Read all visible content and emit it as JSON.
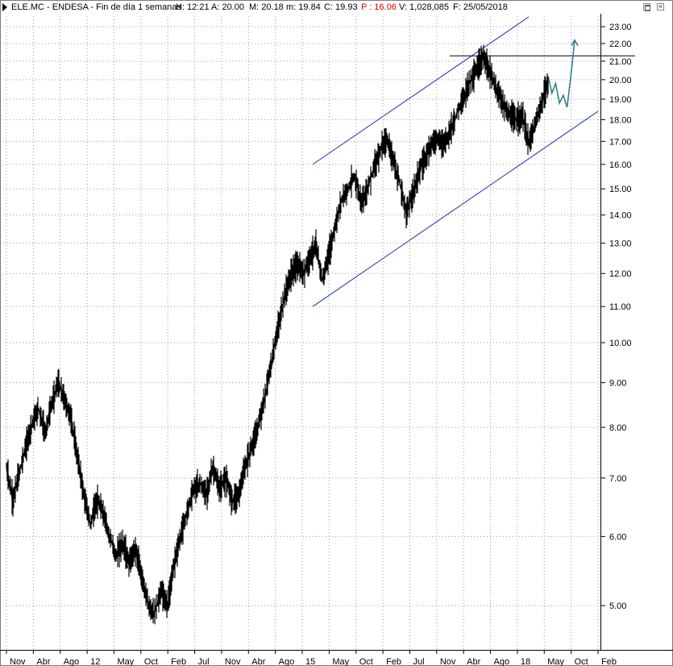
{
  "header": {
    "ticker": "ELE.MC - ENDESA - Fin de día 1 semanas",
    "h": "H: 12:21",
    "a": "A: 20.00",
    "m_max": "M: 20.18",
    "m_min": "m: 19.84",
    "c": "C: 19.93",
    "p": "P : 16.06",
    "v": "V: 1,028,085",
    "f": "F: 25/05/2018"
  },
  "colors": {
    "price": "#000000",
    "channel": "#1c2fb8",
    "resistance": "#000000",
    "projection": "#2f7f8f",
    "grid": "#9a9a9a",
    "header_p": "#e00000"
  },
  "controls": {
    "maximize_icon": "maximize-icon",
    "close_icon": "close-icon"
  },
  "chart_data": {
    "type": "candlestick-line",
    "scale": "log",
    "ylim": [
      4.45,
      23.8
    ],
    "y_ticks": [
      "23.00",
      "22.00",
      "21.00",
      "20.00",
      "19.00",
      "18.00",
      "17.00",
      "16.00",
      "15.00",
      "14.00",
      "13.00",
      "12.00",
      "11.00",
      "10.00",
      "9.00",
      "8.00",
      "7.00",
      "6.00",
      "5.00"
    ],
    "x_ticks": [
      "Nov",
      "Abr",
      "Ago",
      "12",
      "May",
      "Oct",
      "Feb",
      "Jul",
      "Nov",
      "Abr",
      "Ago",
      "15",
      "May",
      "Oct",
      "Feb",
      "Jul",
      "Nov",
      "Abr",
      "Ago",
      "18",
      "May",
      "Oct",
      "Feb"
    ],
    "price_path": [
      [
        0,
        7.2
      ],
      [
        1,
        6.6
      ],
      [
        2,
        7.1
      ],
      [
        3,
        7.6
      ],
      [
        4,
        8.1
      ],
      [
        5,
        8.4
      ],
      [
        6,
        7.9
      ],
      [
        7,
        8.5
      ],
      [
        8,
        9.0
      ],
      [
        9,
        8.6
      ],
      [
        10,
        8.2
      ],
      [
        11,
        7.4
      ],
      [
        12,
        6.7
      ],
      [
        13,
        6.2
      ],
      [
        14,
        6.6
      ],
      [
        15,
        6.4
      ],
      [
        16,
        6.0
      ],
      [
        17,
        5.7
      ],
      [
        18,
        5.9
      ],
      [
        19,
        5.6
      ],
      [
        20,
        5.8
      ],
      [
        21,
        5.4
      ],
      [
        22,
        5.0
      ],
      [
        23,
        4.9
      ],
      [
        24,
        5.2
      ],
      [
        25,
        5.0
      ],
      [
        26,
        5.6
      ],
      [
        27,
        6.0
      ],
      [
        28,
        6.4
      ],
      [
        29,
        6.8
      ],
      [
        30,
        6.9
      ],
      [
        31,
        6.7
      ],
      [
        32,
        7.2
      ],
      [
        33,
        6.8
      ],
      [
        34,
        7.0
      ],
      [
        35,
        6.6
      ],
      [
        36,
        6.7
      ],
      [
        37,
        7.2
      ],
      [
        38,
        7.6
      ],
      [
        39,
        8.0
      ],
      [
        40,
        8.6
      ],
      [
        41,
        9.4
      ],
      [
        42,
        10.3
      ],
      [
        43,
        11.2
      ],
      [
        44,
        11.9
      ],
      [
        45,
        12.3
      ],
      [
        46,
        12.0
      ],
      [
        47,
        12.5
      ],
      [
        48,
        12.9
      ],
      [
        49,
        11.8
      ],
      [
        50,
        12.6
      ],
      [
        51,
        13.6
      ],
      [
        52,
        14.6
      ],
      [
        53,
        15.0
      ],
      [
        54,
        15.5
      ],
      [
        55,
        14.5
      ],
      [
        56,
        15.0
      ],
      [
        57,
        15.9
      ],
      [
        58,
        16.6
      ],
      [
        59,
        17.1
      ],
      [
        60,
        16.2
      ],
      [
        61,
        15.2
      ],
      [
        62,
        14.1
      ],
      [
        63,
        14.8
      ],
      [
        64,
        15.7
      ],
      [
        65,
        16.3
      ],
      [
        66,
        17.0
      ],
      [
        67,
        17.1
      ],
      [
        68,
        16.9
      ],
      [
        69,
        17.6
      ],
      [
        70,
        18.4
      ],
      [
        71,
        19.2
      ],
      [
        72,
        20.0
      ],
      [
        73,
        20.6
      ],
      [
        74,
        21.3
      ],
      [
        75,
        20.4
      ],
      [
        76,
        19.5
      ],
      [
        77,
        18.8
      ],
      [
        78,
        18.2
      ],
      [
        79,
        18.0
      ],
      [
        80,
        18.2
      ],
      [
        81,
        16.9
      ],
      [
        82,
        17.8
      ],
      [
        83,
        18.8
      ],
      [
        84,
        19.8
      ]
    ],
    "channel_upper": [
      [
        0,
        16.0
      ],
      [
        1,
        23.6
      ]
    ],
    "channel_lower": [
      [
        0,
        11.0
      ],
      [
        1,
        18.4
      ]
    ],
    "resistance": 21.3,
    "projection": [
      [
        0,
        20.2
      ],
      [
        1,
        19.3
      ],
      [
        2,
        19.8
      ],
      [
        3,
        18.8
      ],
      [
        4,
        19.2
      ],
      [
        5,
        18.6
      ],
      [
        6,
        20.2
      ],
      [
        7,
        22.2
      ]
    ]
  }
}
